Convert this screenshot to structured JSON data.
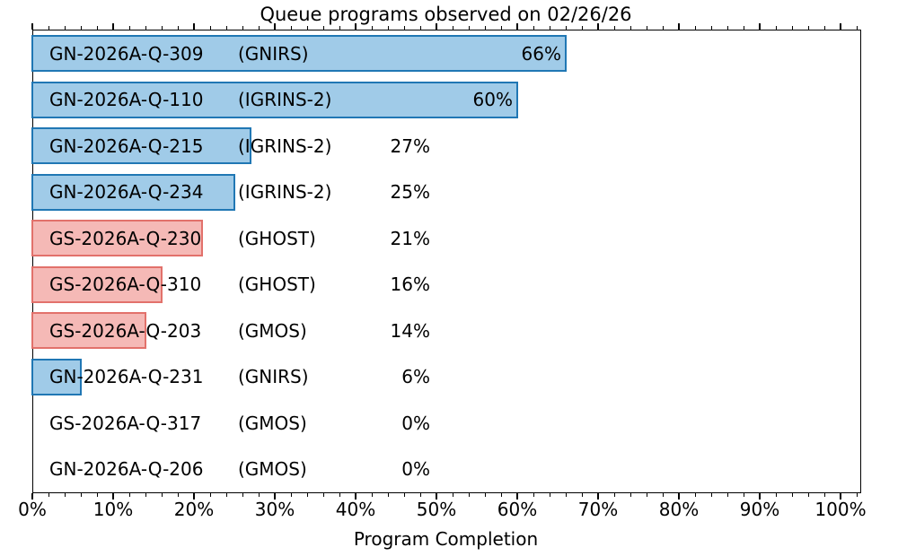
{
  "chart_data": {
    "type": "bar",
    "orientation": "horizontal",
    "title": "Queue programs observed on 02/26/26",
    "xlabel": "Program Completion",
    "xlim": [
      0,
      102.3
    ],
    "grid": false,
    "legend": null,
    "x_major_ticks": [
      {
        "value": 0,
        "label": "0%"
      },
      {
        "value": 10,
        "label": "10%"
      },
      {
        "value": 20,
        "label": "20%"
      },
      {
        "value": 30,
        "label": "30%"
      },
      {
        "value": 40,
        "label": "40%"
      },
      {
        "value": 50,
        "label": "50%"
      },
      {
        "value": 60,
        "label": "60%"
      },
      {
        "value": 70,
        "label": "70%"
      },
      {
        "value": 80,
        "label": "80%"
      },
      {
        "value": 90,
        "label": "90%"
      },
      {
        "value": 100,
        "label": "100%"
      }
    ],
    "x_minor_tick_step": 2,
    "bars": [
      {
        "program": "GN-2026A-Q-309",
        "instrument": "(GNIRS)",
        "value": 66,
        "percent_label": "66%",
        "color_group": "north"
      },
      {
        "program": "GN-2026A-Q-110",
        "instrument": "(IGRINS-2)",
        "value": 60,
        "percent_label": "60%",
        "color_group": "north"
      },
      {
        "program": "GN-2026A-Q-215",
        "instrument": "(IGRINS-2)",
        "value": 27,
        "percent_label": "27%",
        "color_group": "north"
      },
      {
        "program": "GN-2026A-Q-234",
        "instrument": "(IGRINS-2)",
        "value": 25,
        "percent_label": "25%",
        "color_group": "north"
      },
      {
        "program": "GS-2026A-Q-230",
        "instrument": "(GHOST)",
        "value": 21,
        "percent_label": "21%",
        "color_group": "south"
      },
      {
        "program": "GS-2026A-Q-310",
        "instrument": "(GHOST)",
        "value": 16,
        "percent_label": "16%",
        "color_group": "south"
      },
      {
        "program": "GS-2026A-Q-203",
        "instrument": "(GMOS)",
        "value": 14,
        "percent_label": "14%",
        "color_group": "south"
      },
      {
        "program": "GN-2026A-Q-231",
        "instrument": "(GNIRS)",
        "value": 6,
        "percent_label": "6%",
        "color_group": "north"
      },
      {
        "program": "GS-2026A-Q-317",
        "instrument": "(GMOS)",
        "value": 0,
        "percent_label": "0%",
        "color_group": "south"
      },
      {
        "program": "GN-2026A-Q-206",
        "instrument": "(GMOS)",
        "value": 0,
        "percent_label": "0%",
        "color_group": "north"
      }
    ],
    "colors": {
      "north_fill": "#a0cbe8",
      "north_edge": "#2077b4",
      "south_fill": "#f5b9b6",
      "south_edge": "#e2716b",
      "spine": "#000000",
      "text": "#000000"
    }
  }
}
